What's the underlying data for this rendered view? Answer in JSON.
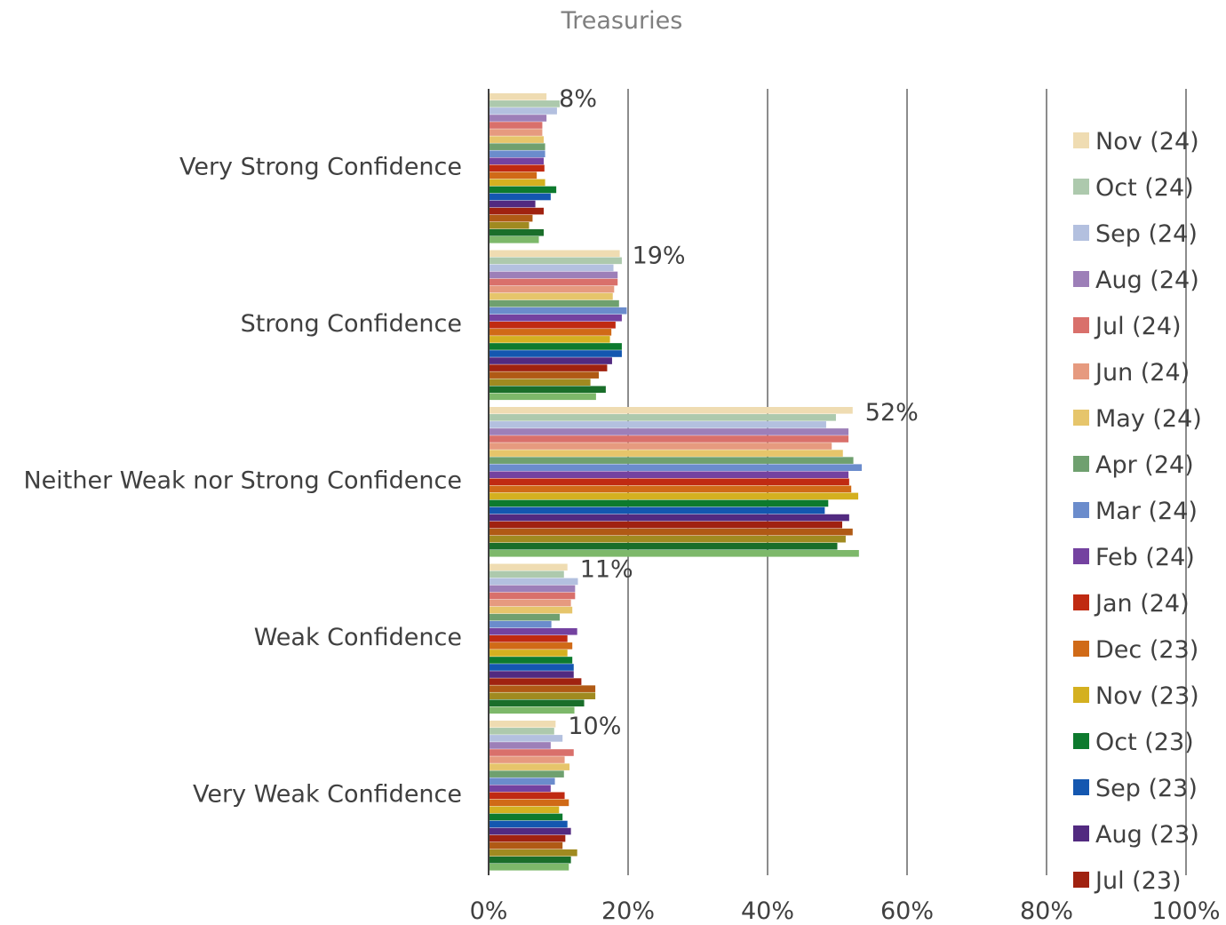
{
  "chart_data": {
    "type": "bar",
    "orientation": "horizontal",
    "title": "Treasuries",
    "xlabel": "",
    "ylabel": "",
    "xlim": [
      0,
      100
    ],
    "x_ticks": [
      "0%",
      "20%",
      "40%",
      "60%",
      "80%",
      "100%"
    ],
    "grid": true,
    "legend_position": "right",
    "categories": [
      "Very Strong Confidence",
      "Strong Confidence",
      "Neither Weak nor Strong Confidence",
      "Weak Confidence",
      "Very Weak Confidence"
    ],
    "data_labels": [
      "8%",
      "19%",
      "52%",
      "11%",
      "10%"
    ],
    "legend_entries": [
      "Nov (24)",
      "Oct (24)",
      "Sep (24)",
      "Aug (24)",
      "Jul (24)",
      "Jun (24)",
      "May (24)",
      "Apr (24)",
      "Mar (24)",
      "Feb (24)",
      "Jan (24)",
      "Dec (23)",
      "Nov (23)",
      "Oct (23)",
      "Sep (23)",
      "Aug (23)",
      "Jul (23)"
    ],
    "series": [
      {
        "name": "Nov (24)",
        "color": "#efdcb2",
        "values": [
          8.3,
          18.8,
          52.2,
          11.3,
          9.6
        ]
      },
      {
        "name": "Oct (24)",
        "color": "#adc9ad",
        "values": [
          10.2,
          19.1,
          49.8,
          10.8,
          9.4
        ]
      },
      {
        "name": "Sep (24)",
        "color": "#b3c0df",
        "values": [
          9.8,
          17.9,
          48.4,
          12.8,
          10.6
        ]
      },
      {
        "name": "Aug (24)",
        "color": "#9d7fb8",
        "values": [
          8.3,
          18.5,
          51.6,
          12.4,
          8.9
        ]
      },
      {
        "name": "Jul (24)",
        "color": "#d9706b",
        "values": [
          7.7,
          18.5,
          51.6,
          12.4,
          12.2
        ]
      },
      {
        "name": "Jun (24)",
        "color": "#e69a7f",
        "values": [
          7.7,
          18.0,
          49.2,
          11.8,
          10.9
        ]
      },
      {
        "name": "May (24)",
        "color": "#e6c56b",
        "values": [
          7.9,
          17.8,
          50.8,
          12.0,
          11.6
        ]
      },
      {
        "name": "Apr (24)",
        "color": "#6fa06f",
        "values": [
          8.1,
          18.7,
          52.3,
          10.2,
          10.8
        ]
      },
      {
        "name": "Mar (24)",
        "color": "#6b8ccc",
        "values": [
          8.1,
          19.8,
          53.5,
          9.0,
          9.5
        ]
      },
      {
        "name": "Feb (24)",
        "color": "#7442a0",
        "values": [
          7.9,
          19.1,
          51.6,
          12.7,
          8.9
        ]
      },
      {
        "name": "Jan (24)",
        "color": "#c02a12",
        "values": [
          8.0,
          18.2,
          51.7,
          11.3,
          10.9
        ]
      },
      {
        "name": "Dec (23)",
        "color": "#d06a17",
        "values": [
          6.9,
          17.6,
          52.0,
          12.0,
          11.5
        ]
      },
      {
        "name": "Nov (23)",
        "color": "#d4b020",
        "values": [
          8.1,
          17.4,
          53.0,
          11.3,
          10.1
        ]
      },
      {
        "name": "Oct (23)",
        "color": "#0d7a2e",
        "values": [
          9.7,
          19.1,
          48.7,
          12.0,
          10.6
        ]
      },
      {
        "name": "Sep (23)",
        "color": "#1457b0",
        "values": [
          8.9,
          19.1,
          48.2,
          12.2,
          11.3
        ]
      },
      {
        "name": "Aug (23)",
        "color": "#522a80",
        "values": [
          6.7,
          17.7,
          51.7,
          12.2,
          11.8
        ]
      },
      {
        "name": "Jul (23)",
        "color": "#a02210",
        "values": [
          7.9,
          17.0,
          50.7,
          13.3,
          11.0
        ]
      },
      {
        "name": "",
        "color": "#b05a15",
        "values": [
          6.3,
          15.8,
          52.2,
          15.3,
          10.6
        ]
      },
      {
        "name": "",
        "color": "#a08a20",
        "values": [
          5.8,
          14.6,
          51.2,
          15.3,
          12.7
        ]
      },
      {
        "name": "",
        "color": "#1a6e2a",
        "values": [
          7.9,
          16.8,
          50.0,
          13.7,
          11.8
        ]
      },
      {
        "name": "",
        "color": "#7db86a",
        "values": [
          7.2,
          15.4,
          53.1,
          12.3,
          11.5
        ]
      }
    ]
  }
}
